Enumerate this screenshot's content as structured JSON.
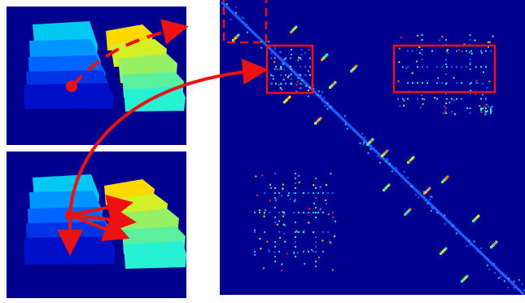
{
  "colors": {
    "background": "#ffffff",
    "panel_bg": "#00008f",
    "arrow": "#ee1111",
    "box": "#ee1111",
    "diagonal": "#1e5cff",
    "blobs_left": [
      "#00c8f0",
      "#0096ff",
      "#0064ff",
      "#0032e6",
      "#0010c8"
    ],
    "blobs_right": [
      "#ffd800",
      "#d2f028",
      "#96f064",
      "#5af0a0",
      "#28f0d2"
    ],
    "point_colors": [
      "#1060ff",
      "#20c0ff",
      "#30f0d0",
      "#90f060",
      "#ffe020",
      "#ff8020",
      "#ff2020"
    ]
  },
  "panels": {
    "top_left": "segmentation-top",
    "bottom_left": "segmentation-bottom",
    "right": "affinity-matrix"
  },
  "annotations": {
    "dashed_box": "dashed-highlight",
    "solid_boxes": [
      "block-highlight-1",
      "block-highlight-2"
    ]
  }
}
